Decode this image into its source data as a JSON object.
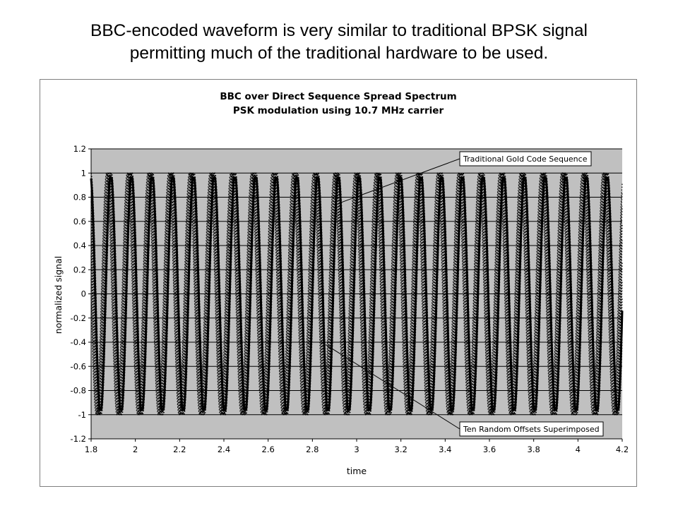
{
  "slide": {
    "title_line1": "BBC-encoded waveform is very similar to traditional BPSK signal",
    "title_line2": "permitting much of the traditional hardware to be used."
  },
  "chart_data": {
    "type": "line",
    "title_line1": "BBC over Direct Sequence Spread Spectrum",
    "title_line2": "PSK modulation using 10.7 MHz carrier",
    "xlabel": "time",
    "ylabel": "normalized signal",
    "xlim": [
      1.8,
      4.2
    ],
    "ylim": [
      -1.2,
      1.2
    ],
    "x_ticks": [
      "1.8",
      "2",
      "2.2",
      "2.4",
      "2.6",
      "2.8",
      "3",
      "3.2",
      "3.4",
      "3.6",
      "3.8",
      "4",
      "4.2"
    ],
    "y_ticks": [
      "1.2",
      "1",
      "0.8",
      "0.6",
      "0.4",
      "0.2",
      "0",
      "-0.2",
      "-0.4",
      "-0.6",
      "-0.8",
      "-1",
      "-1.2"
    ],
    "grid": "horizontal",
    "plot_background": "#c0c0c0",
    "series": [
      {
        "label": "Traditional Gold Code Sequence",
        "style": "solid",
        "color": "#000000",
        "frequency": 10.7,
        "amplitude": 1.0,
        "phase": 0.3,
        "clip": 0.96
      },
      {
        "label": "Ten Random Offsets Superimposed",
        "style": "dotted",
        "color": "#000000",
        "frequency": 10.7,
        "amplitude": 1.0,
        "phase_offsets": [
          0.05,
          0.22,
          0.4,
          0.55,
          0.7,
          0.9,
          1.05,
          1.25,
          1.45,
          1.6
        ]
      }
    ],
    "annotations": [
      {
        "text": "Traditional Gold Code Sequence",
        "points_to": [
          2.92,
          0.75
        ]
      },
      {
        "text": "Ten Random Offsets Superimposed",
        "points_to": [
          2.86,
          -0.42
        ]
      }
    ]
  }
}
